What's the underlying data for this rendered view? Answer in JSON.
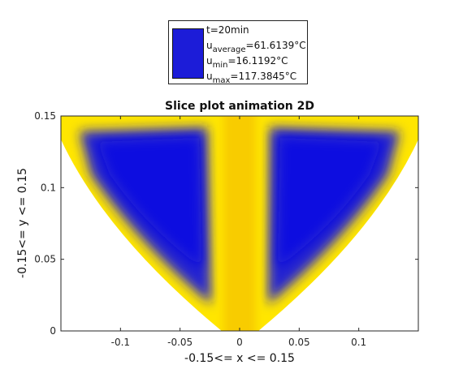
{
  "legend": {
    "time_label": "t=20min",
    "average_prefix": "u",
    "average_sub": "average",
    "average_value": "=61.6139°C",
    "min_prefix": "u",
    "min_sub": "min",
    "min_value": "=16.1192°C",
    "max_prefix": "u",
    "max_sub": "max",
    "max_value": "=117.3845°C",
    "swatch_color": "#1c1cd8"
  },
  "chart_data": {
    "type": "heatmap",
    "title": "Slice plot animation 2D",
    "xlabel": "-0.15<= x <= 0.15",
    "ylabel": "-0.15<= y <= 0.15",
    "xlim": [
      -0.15,
      0.15
    ],
    "ylim": [
      0,
      0.15
    ],
    "xticks": [
      "-0.1",
      "-0.05",
      "0",
      "0.05",
      "0.1"
    ],
    "xtick_values": [
      -0.1,
      -0.05,
      0,
      0.05,
      0.1
    ],
    "yticks": [
      "0",
      "0.05",
      "0.1",
      "0.15"
    ],
    "ytick_values": [
      0,
      0.05,
      0.1,
      0.15
    ],
    "colors": {
      "hot": "#ffe600",
      "center_band": "#f8cc00",
      "cold": "#1c1cd8",
      "background": "#ffffff"
    },
    "regions": [
      {
        "name": "left-cold-lobe",
        "x_range": [
          -0.15,
          -0.02
        ],
        "y_range": [
          0,
          0.15
        ],
        "level": "cold"
      },
      {
        "name": "right-cold-lobe",
        "x_range": [
          0.02,
          0.15
        ],
        "y_range": [
          0,
          0.15
        ],
        "level": "cold"
      },
      {
        "name": "center-band",
        "x_range": [
          -0.017,
          0.017
        ],
        "y_range": [
          0,
          0.15
        ],
        "level": "hot"
      }
    ]
  }
}
